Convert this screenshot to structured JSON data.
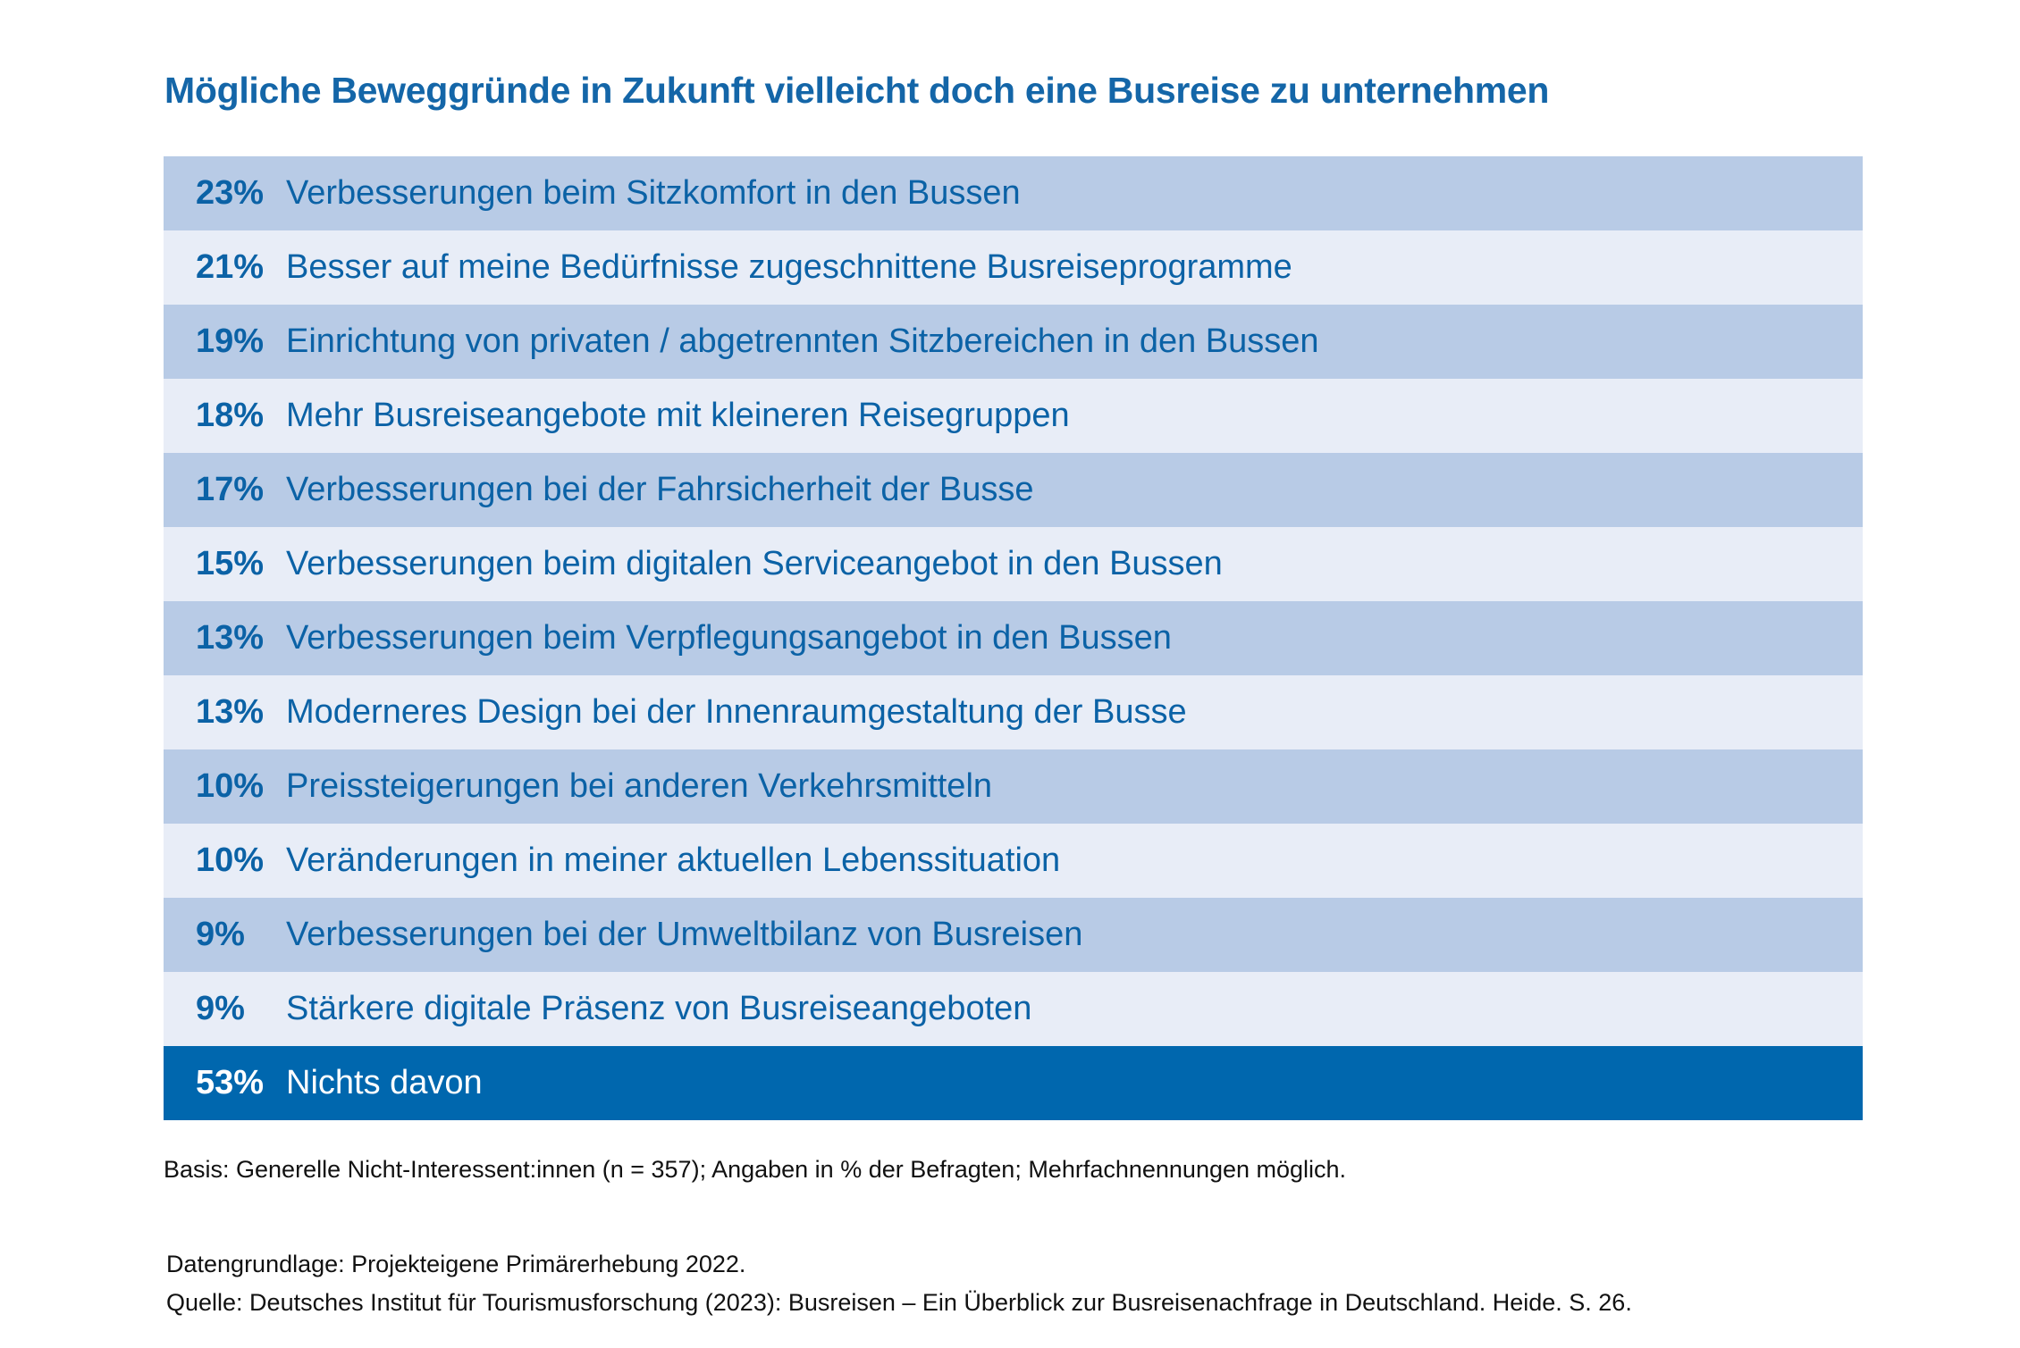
{
  "chart_data": {
    "type": "table",
    "title": "Mögliche Beweggründe in Zukunft vielleicht doch eine Busreise zu unternehmen",
    "rows": [
      {
        "value": 23,
        "pct": "23%",
        "label": "Verbesserungen beim Sitzkomfort in den Bussen"
      },
      {
        "value": 21,
        "pct": "21%",
        "label": "Besser auf meine Bedürfnisse zugeschnittene Busreiseprogramme"
      },
      {
        "value": 19,
        "pct": "19%",
        "label": "Einrichtung von privaten / abgetrennten Sitzbereichen in den Bussen"
      },
      {
        "value": 18,
        "pct": "18%",
        "label": "Mehr Busreiseangebote mit kleineren Reisegruppen"
      },
      {
        "value": 17,
        "pct": "17%",
        "label": "Verbesserungen bei der Fahrsicherheit der Busse"
      },
      {
        "value": 15,
        "pct": "15%",
        "label": "Verbesserungen beim digitalen Serviceangebot in den Bussen"
      },
      {
        "value": 13,
        "pct": "13%",
        "label": "Verbesserungen beim Verpflegungsangebot in den Bussen"
      },
      {
        "value": 13,
        "pct": "13%",
        "label": "Moderneres Design bei der Innenraumgestaltung der Busse"
      },
      {
        "value": 10,
        "pct": "10%",
        "label": "Preissteigerungen bei anderen Verkehrsmitteln"
      },
      {
        "value": 10,
        "pct": "10%",
        "label": "Veränderungen in meiner aktuellen Lebenssituation"
      },
      {
        "value": 9,
        "pct": "9%",
        "label": "Verbesserungen bei der Umweltbilanz von Busreisen"
      },
      {
        "value": 9,
        "pct": "9%",
        "label": "Stärkere digitale Präsenz von Busreiseangeboten"
      },
      {
        "value": 53,
        "pct": "53%",
        "label": "Nichts davon",
        "highlight": true
      }
    ],
    "colors": {
      "title": "#1466a8",
      "row_dark": "#b8cbe6",
      "row_light": "#e8edf7",
      "highlight": "#0067ae",
      "text": "#0b62a6"
    }
  },
  "footnote": "Basis: Generelle Nicht-Interessent:innen (n = 357); Angaben in % der Befragten; Mehrfachnennungen möglich.",
  "data_basis": "Datengrundlage: Projekteigene Primärerhebung 2022.",
  "source": "Quelle: Deutsches Institut für Tourismusforschung (2023): Busreisen – Ein Überblick zur Busreisenachfrage in Deutschland. Heide. S. 26."
}
